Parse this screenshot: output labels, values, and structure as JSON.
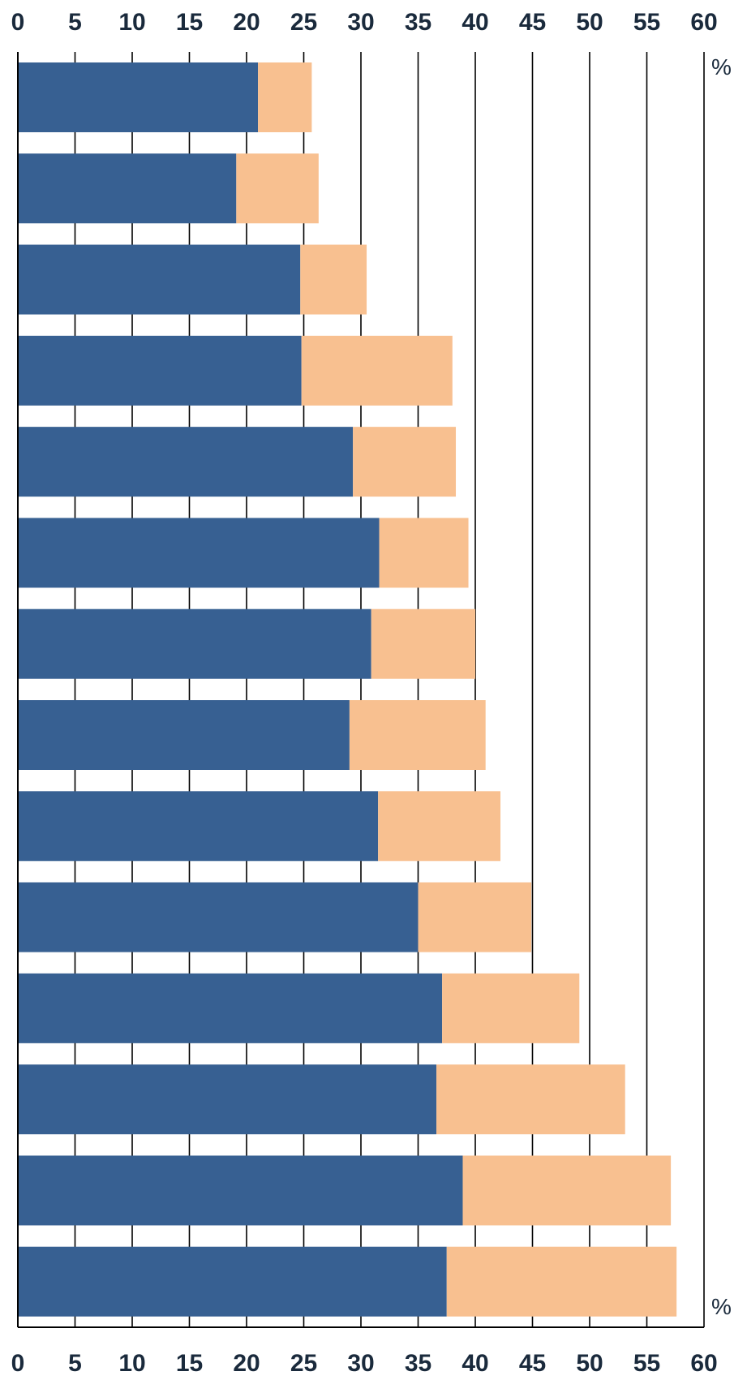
{
  "chart_data": {
    "type": "bar",
    "orientation": "horizontal",
    "stacked": true,
    "unit_label": "%",
    "xlim": [
      0,
      60
    ],
    "x_ticks": [
      0,
      5,
      10,
      15,
      20,
      25,
      30,
      35,
      40,
      45,
      50,
      55,
      60
    ],
    "grid": true,
    "series": [
      {
        "color": "#376092",
        "values": [
          21.0,
          19.1,
          24.7,
          24.8,
          29.3,
          31.6,
          30.9,
          29.0,
          31.5,
          35.0,
          37.1,
          36.6,
          38.9,
          37.5
        ]
      },
      {
        "color": "#f8c090",
        "values": [
          4.7,
          7.2,
          5.8,
          13.2,
          9.0,
          7.8,
          9.1,
          11.9,
          10.7,
          9.9,
          12.0,
          16.5,
          18.2,
          20.1
        ]
      }
    ]
  }
}
